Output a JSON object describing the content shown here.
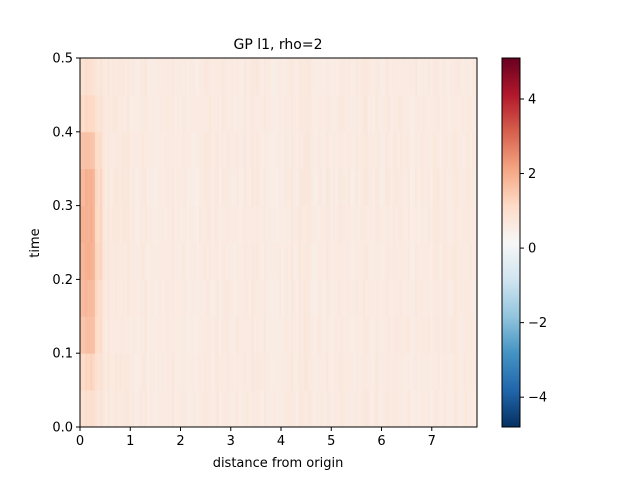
{
  "chart_data": {
    "type": "heatmap",
    "title": "GP l1, rho=2",
    "xlabel": "distance from origin",
    "ylabel": "time",
    "xlim": [
      0,
      7.9
    ],
    "ylim": [
      0,
      0.5
    ],
    "x_ticks": [
      0,
      1,
      2,
      3,
      4,
      5,
      6,
      7
    ],
    "y_ticks": [
      0.0,
      0.1,
      0.2,
      0.3,
      0.4,
      0.5
    ],
    "x_tick_labels": [
      "0",
      "1",
      "2",
      "3",
      "4",
      "5",
      "6",
      "7"
    ],
    "y_tick_labels": [
      "0.0",
      "0.1",
      "0.2",
      "0.3",
      "0.4",
      "0.5"
    ],
    "colormap": "RdBu_r",
    "colorbar": {
      "vmin": -4.8,
      "vmax": 5.1,
      "ticks": [
        -4,
        -2,
        0,
        2,
        4
      ],
      "tick_labels": [
        "−4",
        "−2",
        "0",
        "2",
        "4"
      ]
    },
    "grid": false,
    "y_bands": [
      0.0,
      0.05,
      0.1,
      0.15,
      0.2,
      0.25,
      0.3,
      0.35,
      0.4,
      0.45,
      0.5
    ],
    "row_boost_near_origin": [
      0.35,
      0.6,
      1.0,
      1.15,
      1.3,
      1.3,
      1.25,
      1.0,
      0.55,
      0.3
    ],
    "base_value": 0.6,
    "value_range_observed": [
      0.3,
      1.9
    ]
  }
}
